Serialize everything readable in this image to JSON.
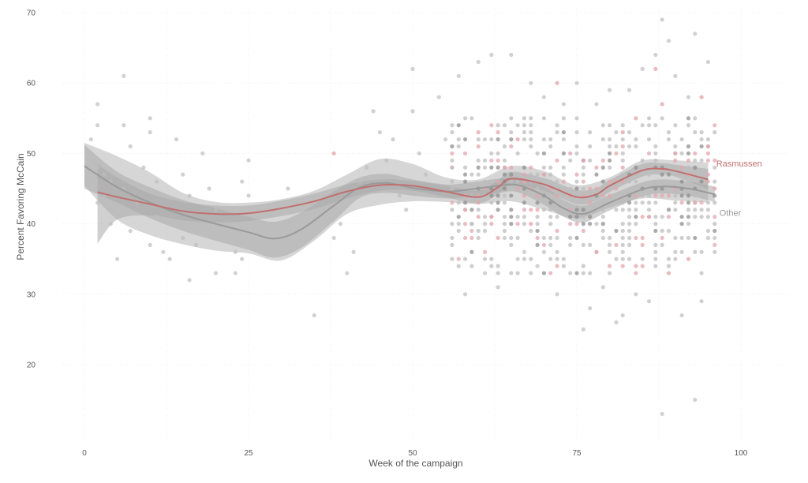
{
  "chart_data": {
    "type": "scatter",
    "title": "",
    "xlabel": "Week of the campaign",
    "ylabel": "Percent Favoring McCain",
    "xlim": [
      -3,
      108
    ],
    "ylim": [
      10.5,
      71
    ],
    "x_ticks": [
      0,
      25,
      50,
      75,
      100
    ],
    "y_ticks": [
      20,
      30,
      40,
      50,
      60,
      70
    ],
    "grid": true,
    "legend": "direct labels at right end of lines",
    "colors": {
      "Rasmussen": "#c0706f",
      "Other": "#9a9a9a",
      "band": "#c8c8c8",
      "point_other": "#bdbdbd",
      "point_rasmussen": "#e3a7ad"
    },
    "series": [
      {
        "name": "Rasmussen",
        "type": "smooth",
        "x": [
          2,
          5,
          10,
          15,
          20,
          25,
          30,
          35,
          40,
          45,
          50,
          55,
          60,
          63,
          65,
          70,
          75,
          78,
          80,
          85,
          88,
          90,
          95
        ],
        "y": [
          44.5,
          43.8,
          42.8,
          41.8,
          41.4,
          41.5,
          42.2,
          43.2,
          44.6,
          45.5,
          45.4,
          44.6,
          43.8,
          45.2,
          46.4,
          45.6,
          43.8,
          44.2,
          45.4,
          47.6,
          47.8,
          47.5,
          46.3
        ],
        "ci_upper": [
          48.5,
          46.6,
          44.3,
          43.1,
          42.6,
          42.6,
          43.3,
          44.3,
          45.6,
          46.3,
          46.1,
          45.4,
          44.7,
          46.2,
          47.4,
          46.5,
          44.8,
          45.1,
          46.2,
          48.5,
          48.6,
          48.4,
          47.8
        ],
        "ci_lower": [
          37.2,
          40.6,
          41.2,
          40.5,
          40.2,
          40.4,
          41.1,
          42.1,
          43.6,
          44.7,
          44.7,
          43.8,
          42.9,
          44.2,
          45.4,
          44.7,
          42.8,
          43.3,
          44.5,
          46.7,
          47.0,
          46.7,
          44.9
        ]
      },
      {
        "name": "Other",
        "type": "smooth",
        "x": [
          0,
          5,
          10,
          15,
          20,
          25,
          29,
          33,
          38,
          42,
          46,
          50,
          55,
          58,
          63,
          66,
          70,
          73,
          76,
          80,
          85,
          88,
          92,
          96
        ],
        "y": [
          48.2,
          45.2,
          43.0,
          41.3,
          40.0,
          38.8,
          37.9,
          39.2,
          42.6,
          45.2,
          45.8,
          45.1,
          44.6,
          44.8,
          45.4,
          45.5,
          44.0,
          42.2,
          41.4,
          43.0,
          44.9,
          45.3,
          45.0,
          44.2
        ],
        "ci_upper": [
          51.2,
          47.4,
          45.2,
          43.4,
          42.2,
          41.0,
          40.3,
          41.6,
          44.6,
          46.6,
          47.1,
          46.3,
          45.6,
          45.8,
          46.4,
          46.6,
          45.3,
          43.4,
          42.6,
          44.1,
          45.9,
          46.3,
          46.0,
          45.3
        ],
        "ci_lower": [
          45.0,
          43.0,
          40.8,
          39.0,
          37.6,
          36.3,
          35.2,
          36.6,
          40.4,
          43.7,
          44.4,
          44.0,
          43.6,
          43.8,
          44.4,
          44.5,
          42.7,
          41.0,
          40.2,
          41.9,
          43.9,
          44.3,
          44.0,
          43.1
        ]
      }
    ],
    "wide_band": {
      "x": [
        0,
        5,
        10,
        15,
        20,
        25,
        30,
        35,
        40,
        45,
        50,
        55,
        60,
        65,
        70,
        75,
        80,
        85,
        90,
        95
      ],
      "upper": [
        51.5,
        49.6,
        47.3,
        44.4,
        43.1,
        43.0,
        43.5,
        44.7,
        47.0,
        49.2,
        48.5,
        46.6,
        46.3,
        48.2,
        47.5,
        45.5,
        46.6,
        49.0,
        49.0,
        48.7
      ],
      "lower": [
        45.4,
        40.6,
        38.4,
        37.1,
        36.2,
        35.8,
        34.8,
        37.6,
        41.4,
        42.7,
        43.2,
        43.1,
        42.8,
        43.2,
        42.0,
        40.8,
        42.3,
        43.6,
        43.3,
        43.0
      ]
    },
    "points": {
      "Other": [
        [
          2,
          54
        ],
        [
          2,
          57
        ],
        [
          1,
          52
        ],
        [
          1,
          50
        ],
        [
          2,
          48
        ],
        [
          3,
          47
        ],
        [
          4,
          46
        ],
        [
          3,
          44
        ],
        [
          2,
          43
        ],
        [
          5,
          41
        ],
        [
          4,
          40
        ],
        [
          6,
          61
        ],
        [
          6,
          54
        ],
        [
          7,
          51
        ],
        [
          6,
          45
        ],
        [
          8,
          43
        ],
        [
          7,
          39
        ],
        [
          5,
          35
        ],
        [
          9,
          48
        ],
        [
          10,
          55
        ],
        [
          10,
          53
        ],
        [
          11,
          46
        ],
        [
          12,
          44
        ],
        [
          11,
          41
        ],
        [
          10,
          37
        ],
        [
          12,
          36
        ],
        [
          13,
          35
        ],
        [
          14,
          52
        ],
        [
          15,
          47
        ],
        [
          16,
          44
        ],
        [
          16,
          40
        ],
        [
          15,
          38
        ],
        [
          17,
          37
        ],
        [
          16,
          32
        ],
        [
          18,
          50
        ],
        [
          19,
          45
        ],
        [
          20,
          42
        ],
        [
          21,
          39
        ],
        [
          20,
          33
        ],
        [
          22,
          38
        ],
        [
          23,
          36
        ],
        [
          24,
          46
        ],
        [
          25,
          44
        ],
        [
          24,
          35
        ],
        [
          23,
          33
        ],
        [
          25,
          49
        ],
        [
          26,
          42
        ],
        [
          27,
          41
        ],
        [
          28,
          38
        ],
        [
          29,
          36
        ],
        [
          30,
          37
        ],
        [
          31,
          45
        ],
        [
          32,
          40
        ],
        [
          33,
          42
        ],
        [
          34,
          38
        ],
        [
          35,
          27
        ],
        [
          36,
          44
        ],
        [
          37,
          41
        ],
        [
          38,
          38
        ],
        [
          39,
          40
        ],
        [
          40,
          33
        ],
        [
          41,
          36
        ],
        [
          42,
          46
        ],
        [
          43,
          48
        ],
        [
          44,
          56
        ],
        [
          45,
          53
        ],
        [
          46,
          49
        ],
        [
          47,
          52
        ],
        [
          48,
          44
        ],
        [
          49,
          42
        ],
        [
          50,
          62
        ],
        [
          50,
          56
        ],
        [
          51,
          50
        ],
        [
          52,
          47
        ],
        [
          53,
          44
        ],
        [
          54,
          58
        ],
        [
          55,
          52
        ],
        [
          56,
          48
        ],
        [
          57,
          61
        ],
        [
          58,
          30
        ],
        [
          59,
          40
        ],
        [
          60,
          63
        ],
        [
          61,
          33
        ],
        [
          62,
          64
        ],
        [
          63,
          31
        ],
        [
          64,
          38
        ],
        [
          65,
          64
        ],
        [
          66,
          35
        ],
        [
          67,
          36
        ],
        [
          68,
          60
        ],
        [
          69,
          34
        ],
        [
          70,
          58
        ],
        [
          71,
          37
        ],
        [
          72,
          30
        ],
        [
          73,
          57
        ],
        [
          74,
          33
        ],
        [
          75,
          60
        ],
        [
          76,
          25
        ],
        [
          77,
          28
        ],
        [
          78,
          57
        ],
        [
          79,
          31
        ],
        [
          80,
          59
        ],
        [
          81,
          26
        ],
        [
          82,
          27
        ],
        [
          83,
          59
        ],
        [
          84,
          30
        ],
        [
          85,
          62
        ],
        [
          86,
          29
        ],
        [
          87,
          64
        ],
        [
          88,
          69
        ],
        [
          88,
          13
        ],
        [
          89,
          66
        ],
        [
          90,
          61
        ],
        [
          91,
          27
        ],
        [
          92,
          58
        ],
        [
          93,
          15
        ],
        [
          93,
          67
        ],
        [
          94,
          29
        ],
        [
          95,
          63
        ],
        [
          96,
          38
        ]
      ],
      "Rasmussen": [
        [
          38,
          50
        ],
        [
          58,
          42
        ],
        [
          62,
          41
        ],
        [
          64,
          48
        ],
        [
          66,
          52
        ],
        [
          68,
          40
        ],
        [
          70,
          47
        ],
        [
          72,
          60
        ],
        [
          74,
          44
        ],
        [
          76,
          49
        ],
        [
          78,
          36
        ],
        [
          80,
          46
        ],
        [
          82,
          53
        ],
        [
          84,
          55
        ],
        [
          86,
          41
        ],
        [
          88,
          57
        ],
        [
          90,
          50
        ],
        [
          92,
          35
        ],
        [
          94,
          58
        ],
        [
          96,
          45
        ],
        [
          87,
          62
        ],
        [
          89,
          33
        ],
        [
          91,
          48
        ],
        [
          93,
          43
        ],
        [
          95,
          51
        ]
      ],
      "grid_cloud": {
        "x_from": 56,
        "x_to": 96,
        "y_from": 33,
        "y_to": 55,
        "note": "dense cloud of poll results"
      }
    },
    "series_labels": [
      {
        "name": "Rasmussen",
        "x": 96,
        "y": 48.6
      },
      {
        "name": "Other",
        "x": 96,
        "y": 41.6
      }
    ]
  },
  "labels": {
    "xlabel": "Week of the campaign",
    "ylabel": "Percent Favoring McCain",
    "rasmussen": "Rasmussen",
    "other": "Other"
  }
}
